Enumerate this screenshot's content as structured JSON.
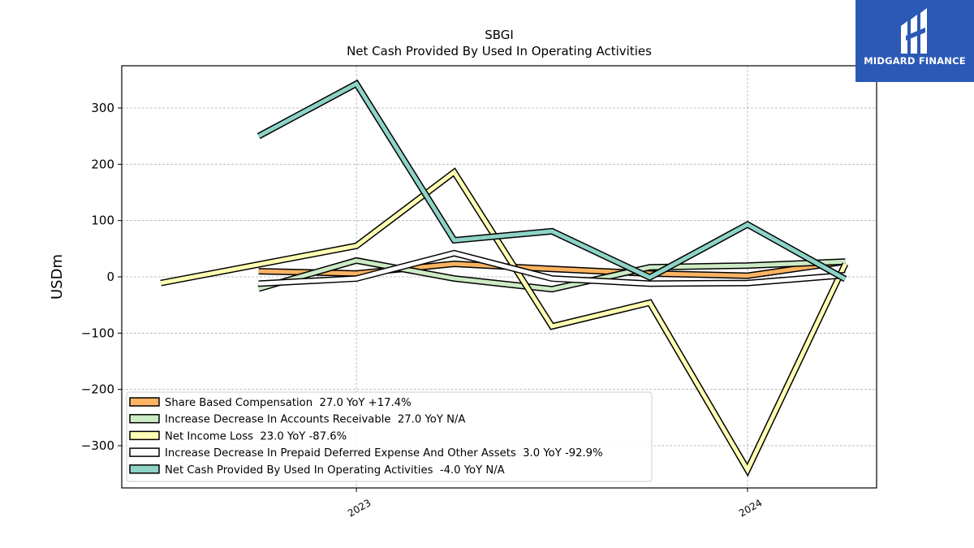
{
  "chart_data": {
    "type": "line",
    "title": "SBGI",
    "subtitle": "Net Cash Provided By Used In Operating Activities",
    "ylabel": "USDm",
    "xlabel": "",
    "ylim": [
      -375,
      375
    ],
    "xlim": [
      2022.4,
      2024.33
    ],
    "yticks": [
      -300,
      -200,
      -100,
      0,
      100,
      200,
      300
    ],
    "ytick_labels": [
      "−300",
      "−200",
      "−100",
      "0",
      "100",
      "200",
      "300"
    ],
    "xticks": [
      2023.0,
      2024.0
    ],
    "xtick_labels": [
      "2023",
      "2024"
    ],
    "grid": true,
    "legend_position": "lower-left",
    "series": [
      {
        "name": "Share Based Compensation  27.0 YoY +17.4%",
        "color": "#fdb462",
        "x": [
          2022.75,
          2023.0,
          2023.25,
          2023.5,
          2023.75,
          2024.0,
          2024.25
        ],
        "y": [
          10,
          6,
          23,
          14,
          6,
          2,
          27
        ]
      },
      {
        "name": "Increase Decrease In Accounts Receivable  27.0 YoY N/A",
        "color": "#ccebc5",
        "x": [
          2022.75,
          2023.0,
          2023.25,
          2023.5,
          2023.75,
          2024.0,
          2024.25
        ],
        "y": [
          -21,
          29,
          -3,
          -22,
          17,
          20,
          27
        ]
      },
      {
        "name": "Net Income Loss  23.0 YoY -87.6%",
        "color": "#ffffb3",
        "x": [
          2022.5,
          2023.0,
          2023.25,
          2023.5,
          2023.75,
          2024.0,
          2024.25
        ],
        "y": [
          -11,
          55,
          186,
          -88,
          -46,
          -343,
          23
        ]
      },
      {
        "name": "Increase Decrease In Prepaid Deferred Expense And Other Assets  3.0 YoY -92.9%",
        "color": "#ffffff",
        "x": [
          2022.75,
          2023.0,
          2023.25,
          2023.5,
          2023.75,
          2024.0,
          2024.25
        ],
        "y": [
          -12,
          -3,
          42,
          -3,
          -12,
          -11,
          3
        ]
      },
      {
        "name": "Net Cash Provided By Used In Operating Activities  -4.0 YoY N/A",
        "color": "#8dd3c7",
        "x": [
          2022.75,
          2023.0,
          2023.25,
          2023.5,
          2023.75,
          2024.0,
          2024.25
        ],
        "y": [
          250,
          343,
          65,
          81,
          -1,
          93,
          -4
        ]
      }
    ]
  },
  "logo": {
    "text": "MIDGARD FINANCE",
    "color": "#2b59b5"
  }
}
